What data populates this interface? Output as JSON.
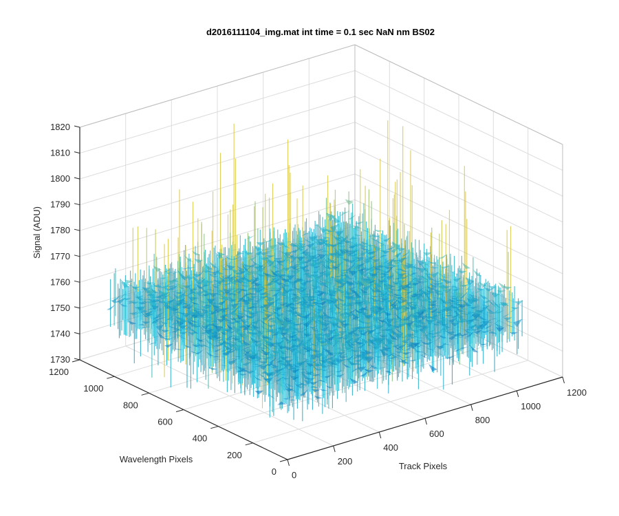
{
  "chart_data": {
    "type": "surface",
    "title": "d2016111104_img.mat int time = 0.1 sec  NaN nm BS02",
    "xlabel": "Track Pixels",
    "ylabel": "Wavelength Pixels",
    "zlabel": "Signal (ADU)",
    "xlim": [
      0,
      1200
    ],
    "ylim": [
      0,
      1200
    ],
    "zlim": [
      1730,
      1820
    ],
    "x_ticks": [
      "0",
      "200",
      "400",
      "600",
      "800",
      "1000",
      "1200"
    ],
    "y_ticks": [
      "0",
      "200",
      "400",
      "600",
      "800",
      "1000",
      "1200"
    ],
    "z_ticks": [
      "1730",
      "1740",
      "1750",
      "1760",
      "1770",
      "1780",
      "1790",
      "1800",
      "1810",
      "1820"
    ],
    "data_extent": {
      "x": [
        1,
        1024
      ],
      "y": [
        1,
        1024
      ]
    },
    "signal_mean": 1758,
    "signal_typical_range": [
      1740,
      1790
    ],
    "signal_max_spike": 1815,
    "grid": true,
    "colormap": "parula",
    "colors": {
      "low": "#0072BD",
      "mid": "#21B0C8",
      "high": "#D8C63B",
      "axis": "#262626",
      "grid": "#DCDCDC"
    }
  }
}
